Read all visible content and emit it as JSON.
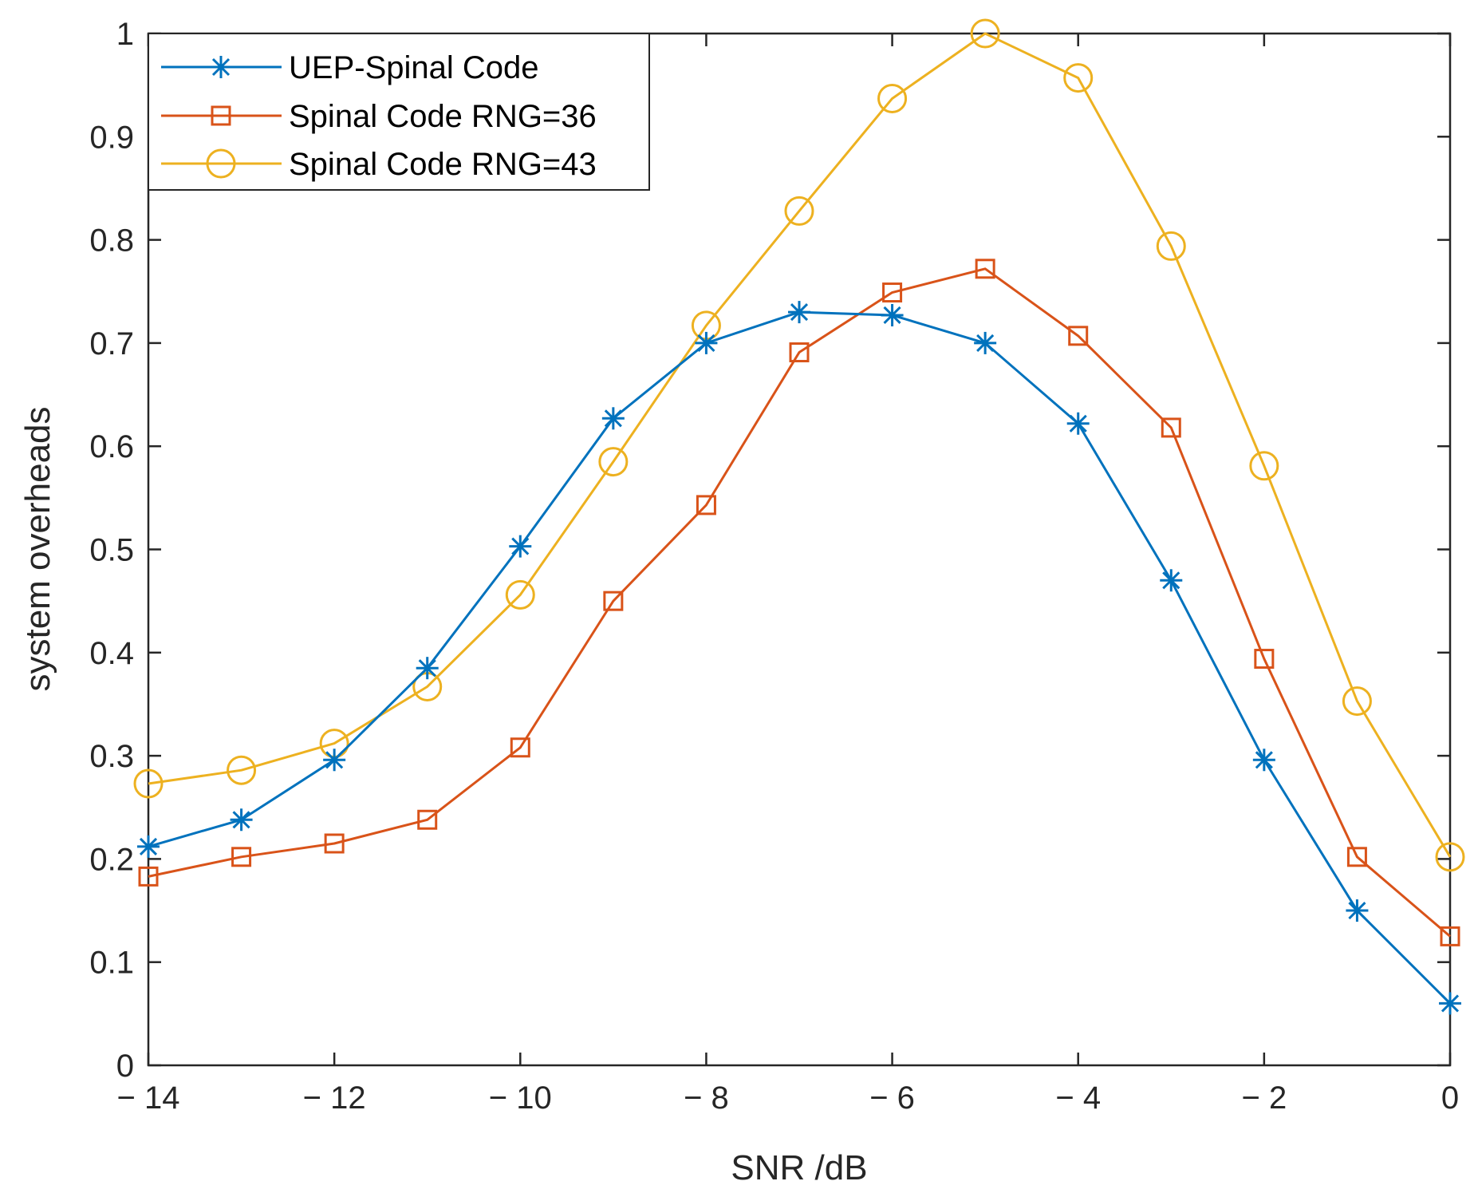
{
  "chart_data": {
    "type": "line",
    "xlabel": "SNR /dB",
    "ylabel": "system overheads",
    "xlim": [
      -14,
      0
    ],
    "ylim": [
      0,
      1
    ],
    "xticks": [
      -14,
      -12,
      -10,
      -8,
      -6,
      -4,
      -2,
      0
    ],
    "xtick_labels": [
      "− 14",
      "− 12",
      "− 10",
      "− 8",
      "− 6",
      "− 4",
      "− 2",
      "0"
    ],
    "yticks": [
      0,
      0.1,
      0.2,
      0.3,
      0.4,
      0.5,
      0.6,
      0.7,
      0.8,
      0.9,
      1
    ],
    "ytick_labels": [
      "0",
      "0.1",
      "0.2",
      "0.3",
      "0.4",
      "0.5",
      "0.6",
      "0.7",
      "0.8",
      "0.9",
      "1"
    ],
    "grid": false,
    "legend_position": "top-left",
    "x": [
      -14,
      -13,
      -12,
      -11,
      -10,
      -9,
      -8,
      -7,
      -6,
      -5,
      -4,
      -3,
      -2,
      -1,
      0
    ],
    "series": [
      {
        "name": "UEP-Spinal Code",
        "color": "#0072BD",
        "marker": "asterisk",
        "values": [
          0.212,
          0.238,
          0.296,
          0.385,
          0.503,
          0.627,
          0.7,
          0.73,
          0.727,
          0.7,
          0.622,
          0.47,
          0.296,
          0.15,
          0.06
        ]
      },
      {
        "name": "Spinal Code RNG=36",
        "color": "#D95319",
        "marker": "square",
        "values": [
          0.183,
          0.202,
          0.215,
          0.238,
          0.308,
          0.45,
          0.543,
          0.691,
          0.749,
          0.772,
          0.707,
          0.618,
          0.394,
          0.202,
          0.125
        ]
      },
      {
        "name": "Spinal Code RNG=43",
        "color": "#EDB120",
        "marker": "circle",
        "values": [
          0.273,
          0.286,
          0.312,
          0.367,
          0.456,
          0.585,
          0.717,
          0.828,
          0.937,
          1.0,
          0.957,
          0.794,
          0.581,
          0.353,
          0.202
        ]
      }
    ]
  }
}
